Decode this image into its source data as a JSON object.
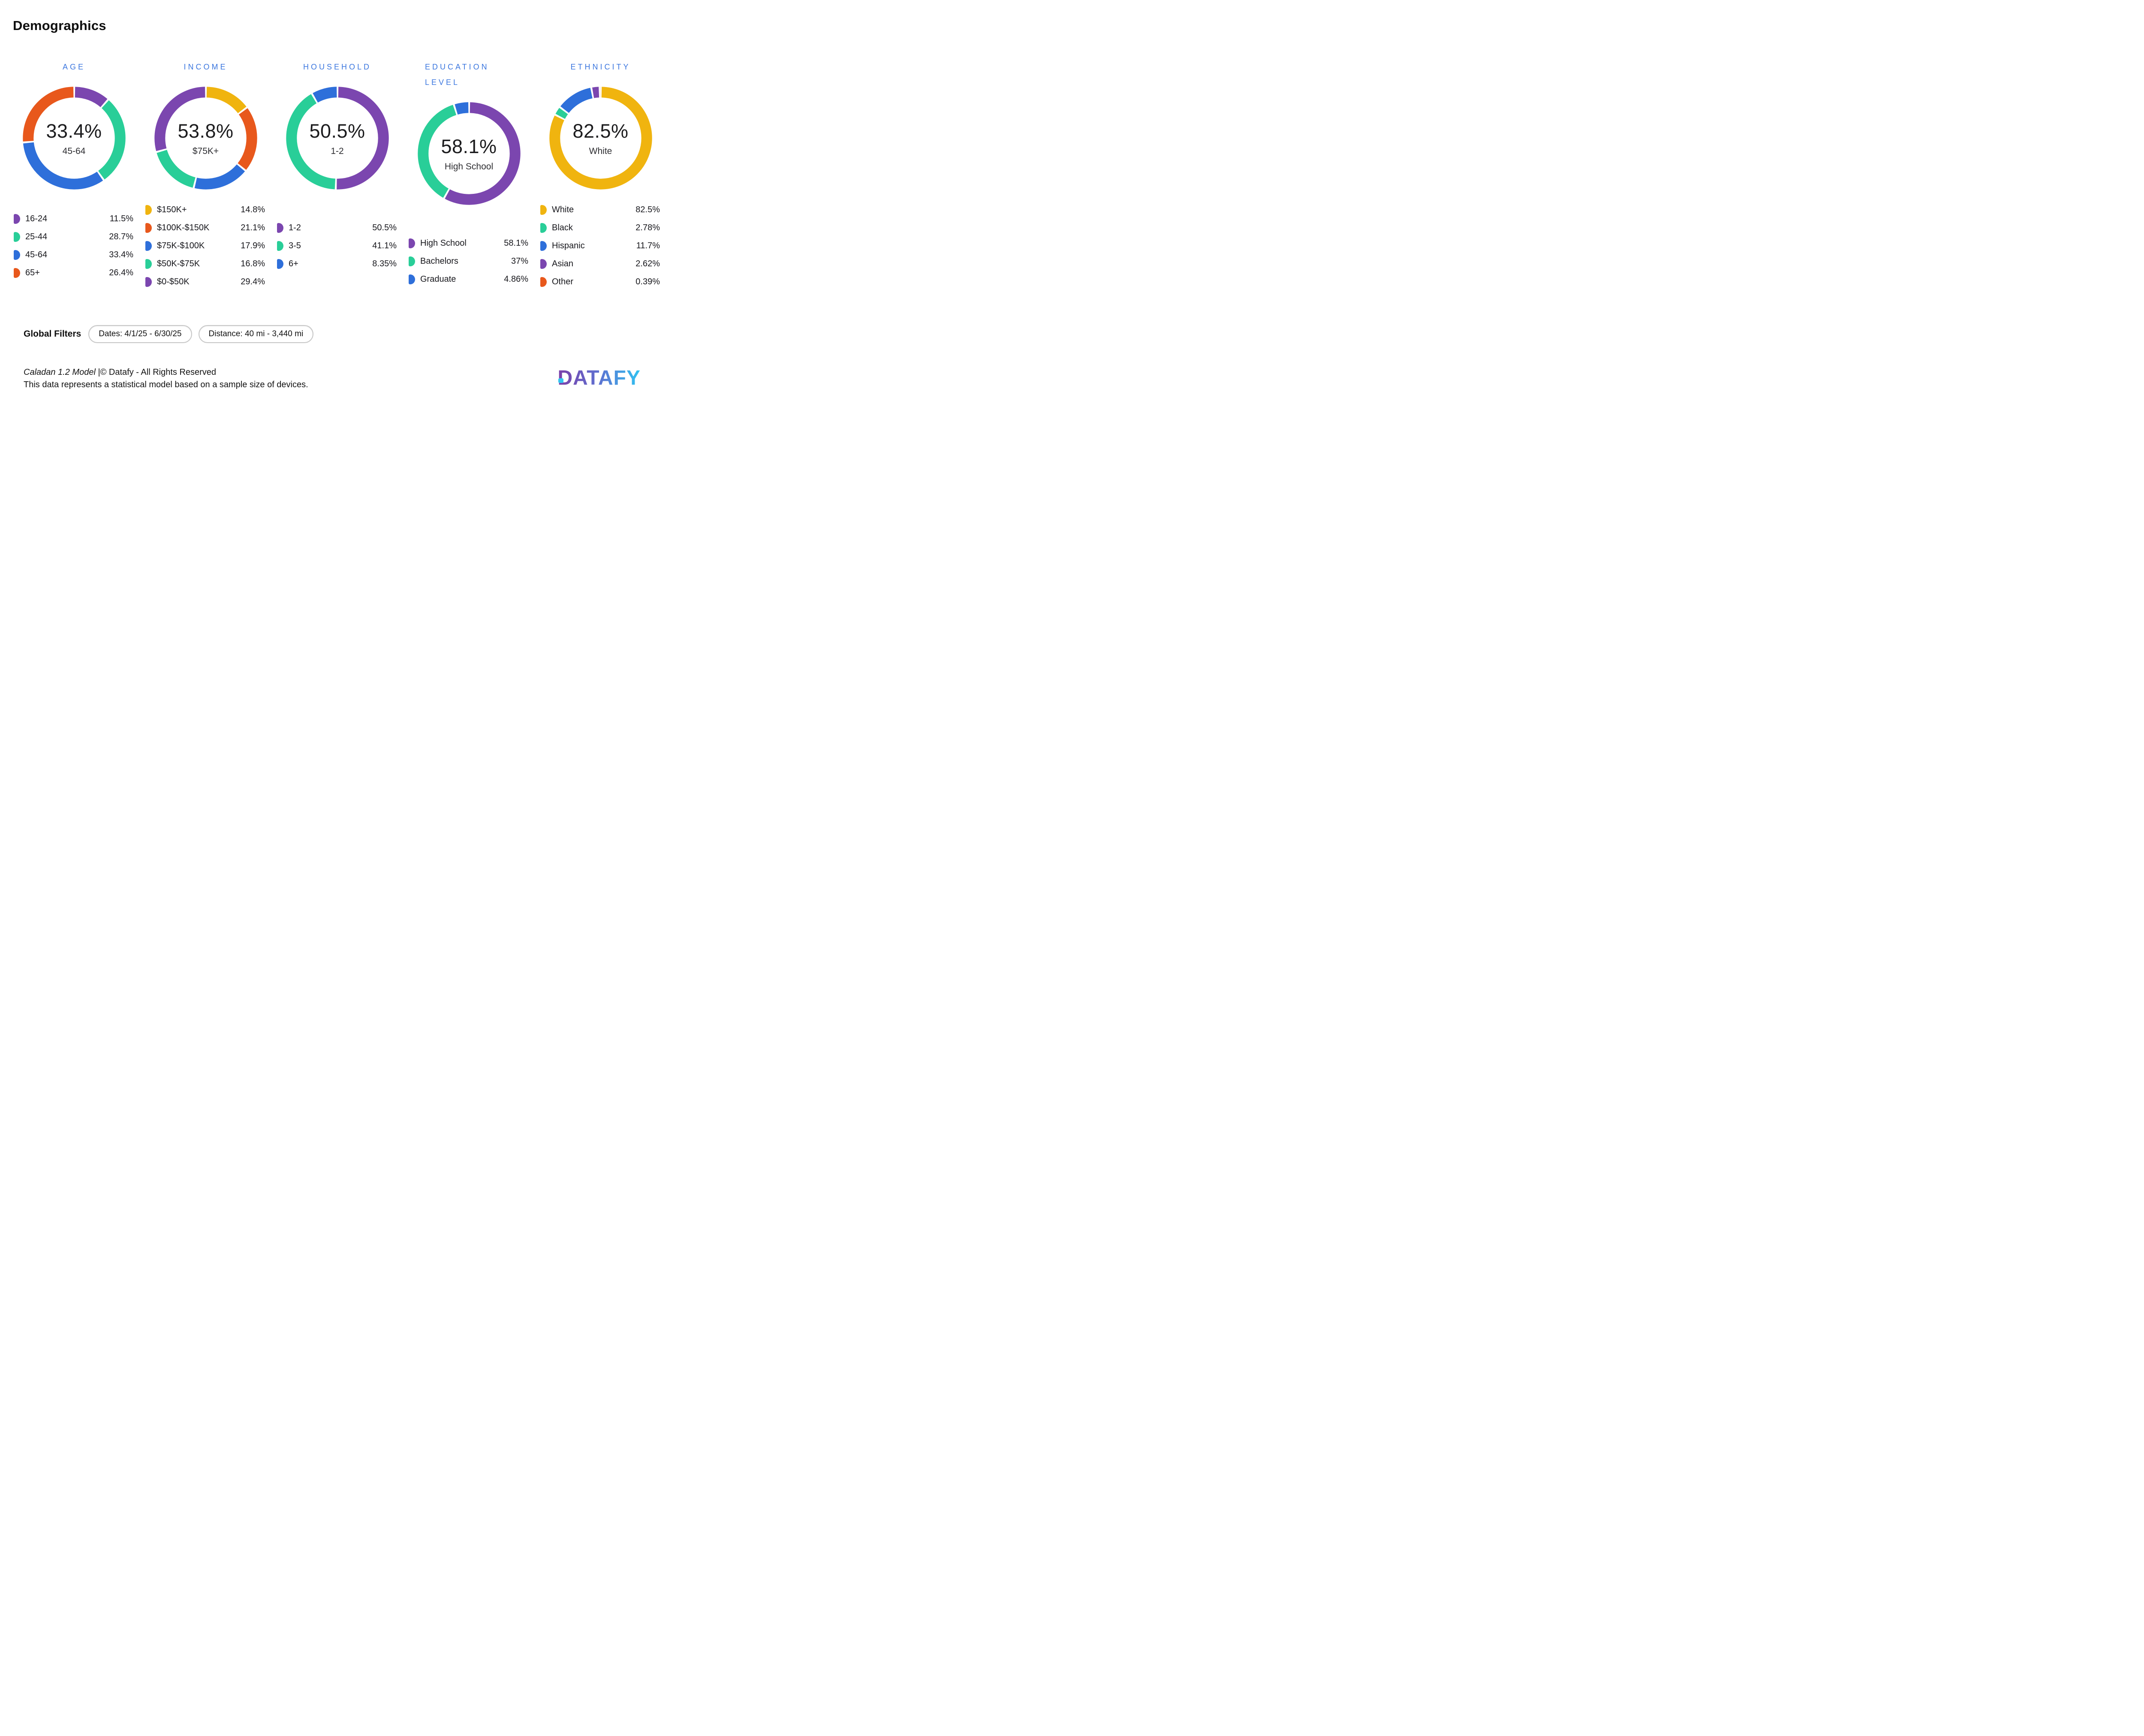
{
  "page_title": "Demographics",
  "colors": {
    "chart_title_blue": "#3C77DF",
    "purple": "#7B46AF",
    "green": "#29CE98",
    "blue": "#2E6FDA",
    "orange": "#E8581C",
    "yellow": "#F0B40F",
    "chip_border": "#C6C6C6",
    "logo_gradient_start": "#7B3EA8",
    "logo_gradient_end": "#2FC3F2"
  },
  "chart_data": [
    {
      "type": "donut",
      "title": "AGE",
      "center_value": "33.4%",
      "center_label": "45-64",
      "segments": [
        {
          "label": "16-24",
          "value": 11.5,
          "display": "11.5%",
          "color": "#7B46AF"
        },
        {
          "label": "25-44",
          "value": 28.7,
          "display": "28.7%",
          "color": "#29CE98"
        },
        {
          "label": "45-64",
          "value": 33.4,
          "display": "33.4%",
          "color": "#2E6FDA"
        },
        {
          "label": "65+",
          "value": 26.4,
          "display": "26.4%",
          "color": "#E8581C"
        }
      ]
    },
    {
      "type": "donut",
      "title": "INCOME",
      "center_value": "53.8%",
      "center_label": "$75K+",
      "segments": [
        {
          "label": "$150K+",
          "value": 14.8,
          "display": "14.8%",
          "color": "#F0B40F"
        },
        {
          "label": "$100K-$150K",
          "value": 21.1,
          "display": "21.1%",
          "color": "#E8581C"
        },
        {
          "label": "$75K-$100K",
          "value": 17.9,
          "display": "17.9%",
          "color": "#2E6FDA"
        },
        {
          "label": "$50K-$75K",
          "value": 16.8,
          "display": "16.8%",
          "color": "#29CE98"
        },
        {
          "label": "$0-$50K",
          "value": 29.4,
          "display": "29.4%",
          "color": "#7B46AF"
        }
      ]
    },
    {
      "type": "donut",
      "title": "HOUSEHOLD",
      "center_value": "50.5%",
      "center_label": "1-2",
      "segments": [
        {
          "label": "1-2",
          "value": 50.5,
          "display": "50.5%",
          "color": "#7B46AF"
        },
        {
          "label": "3-5",
          "value": 41.1,
          "display": "41.1%",
          "color": "#29CE98"
        },
        {
          "label": "6+",
          "value": 8.35,
          "display": "8.35%",
          "color": "#2E6FDA"
        }
      ]
    },
    {
      "type": "donut",
      "title": "EDUCATION LEVEL",
      "center_value": "58.1%",
      "center_label": "High School",
      "segments": [
        {
          "label": "High School",
          "value": 58.1,
          "display": "58.1%",
          "color": "#7B46AF"
        },
        {
          "label": "Bachelors",
          "value": 37,
          "display": "37%",
          "color": "#29CE98"
        },
        {
          "label": "Graduate",
          "value": 4.86,
          "display": "4.86%",
          "color": "#2E6FDA"
        }
      ]
    },
    {
      "type": "donut",
      "title": "ETHNICITY",
      "center_value": "82.5%",
      "center_label": "White",
      "segments": [
        {
          "label": "White",
          "value": 82.5,
          "display": "82.5%",
          "color": "#F0B40F"
        },
        {
          "label": "Black",
          "value": 2.78,
          "display": "2.78%",
          "color": "#29CE98"
        },
        {
          "label": "Hispanic",
          "value": 11.7,
          "display": "11.7%",
          "color": "#2E6FDA"
        },
        {
          "label": "Asian",
          "value": 2.62,
          "display": "2.62%",
          "color": "#7B46AF"
        },
        {
          "label": "Other",
          "value": 0.39,
          "display": "0.39%",
          "color": "#E8581C"
        }
      ]
    }
  ],
  "filters": {
    "label": "Global Filters",
    "chips": [
      "Dates: 4/1/25 - 6/30/25",
      "Distance: 40 mi - 3,440 mi"
    ]
  },
  "footer": {
    "model_name": "Caladan 1.2 Model",
    "rights": " |© Datafy - All Rights Reserved",
    "disclaimer": "This data represents a statistical model based on a sample size of devices.",
    "logo": "DATAFY"
  }
}
